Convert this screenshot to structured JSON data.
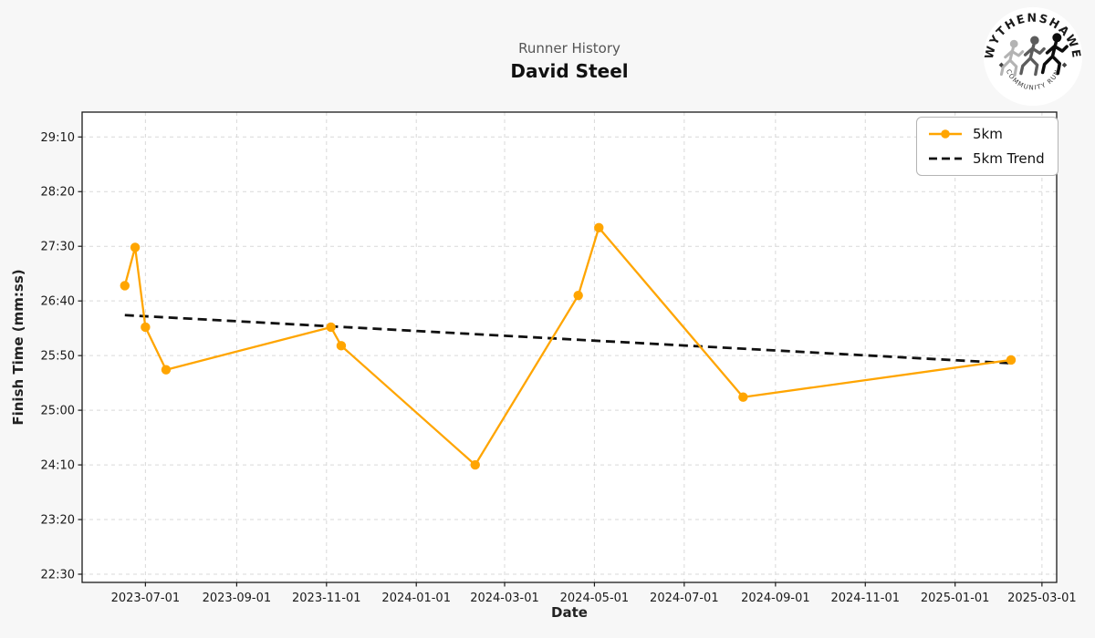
{
  "header": {
    "title": "Runner History",
    "subtitle": "David Steel"
  },
  "logo": {
    "top_text": "WYTHENSHAWE",
    "bottom_text": "COMMUNITY RUN"
  },
  "chart_data": {
    "type": "line",
    "title": "Runner History",
    "subtitle": "David Steel",
    "xlabel": "Date",
    "ylabel": "Finish Time (mm:ss)",
    "grid": true,
    "legend_position": "upper right",
    "xlim": [
      "2023-05-19",
      "2025-03-11"
    ],
    "ylim_seconds": [
      1342.5,
      1772.75
    ],
    "x_ticks": [
      "2023-07-01",
      "2023-09-01",
      "2023-11-01",
      "2024-01-01",
      "2024-03-01",
      "2024-05-01",
      "2024-07-01",
      "2024-09-01",
      "2024-11-01",
      "2025-01-01",
      "2025-03-01"
    ],
    "y_ticks": [
      "22:30",
      "23:20",
      "24:10",
      "25:00",
      "25:50",
      "26:40",
      "27:30",
      "28:20",
      "29:10"
    ],
    "series": [
      {
        "name": "5km",
        "color": "#FFA500",
        "style": "solid-marker",
        "points": [
          {
            "date": "2023-06-17",
            "time": "26:54"
          },
          {
            "date": "2023-06-24",
            "time": "27:29"
          },
          {
            "date": "2023-07-01",
            "time": "26:16"
          },
          {
            "date": "2023-07-15",
            "time": "25:37"
          },
          {
            "date": "2023-11-04",
            "time": "26:16"
          },
          {
            "date": "2023-11-11",
            "time": "25:59"
          },
          {
            "date": "2024-02-10",
            "time": "24:10"
          },
          {
            "date": "2024-04-20",
            "time": "26:45"
          },
          {
            "date": "2024-05-04",
            "time": "27:47"
          },
          {
            "date": "2024-08-10",
            "time": "25:12"
          },
          {
            "date": "2025-02-08",
            "time": "25:46"
          }
        ]
      },
      {
        "name": "5km Trend",
        "color": "#111111",
        "style": "dashed",
        "points": [
          {
            "date": "2023-06-17",
            "time": "26:27"
          },
          {
            "date": "2025-02-08",
            "time": "25:43"
          }
        ]
      }
    ],
    "colors": {
      "figure_background": "#f7f7f7",
      "plot_background": "#ffffff",
      "grid": "#d9d9d9",
      "spine": "#1a1a1a",
      "tick_label": "#1a1a1a"
    }
  }
}
